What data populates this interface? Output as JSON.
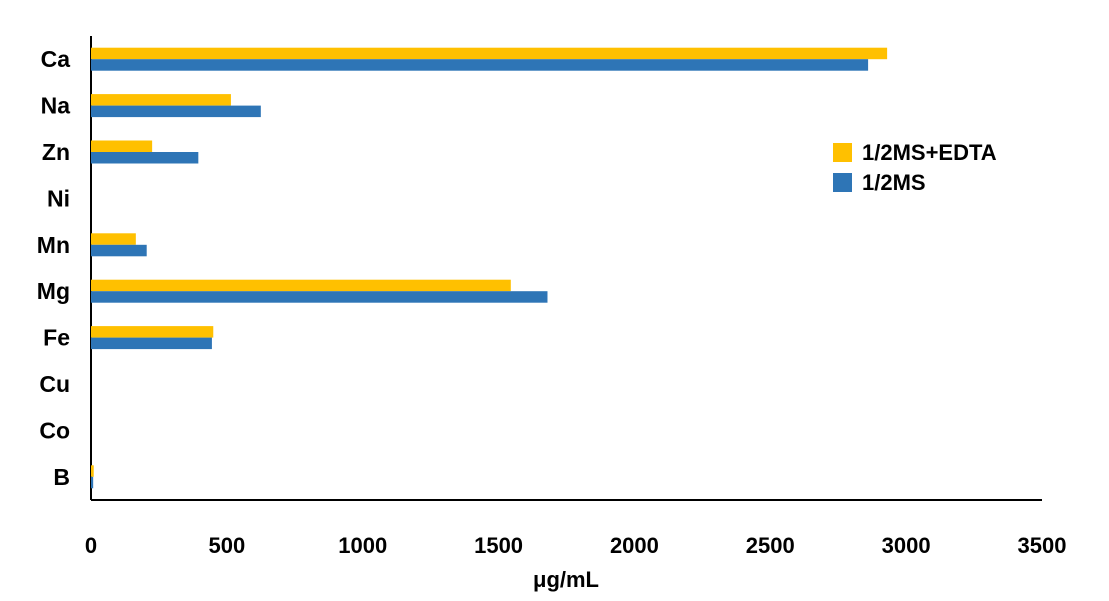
{
  "chart_data": {
    "type": "bar",
    "orientation": "horizontal",
    "categories": [
      "Ca",
      "Na",
      "Zn",
      "Ni",
      "Mn",
      "Mg",
      "Fe",
      "Cu",
      "Co",
      "B"
    ],
    "series": [
      {
        "name": "1/2MS+EDTA",
        "color": "#FFC000",
        "values": [
          2930,
          515,
          225,
          0,
          165,
          1545,
          450,
          0,
          0,
          10
        ]
      },
      {
        "name": "1/2MS",
        "color": "#2E75B6",
        "values": [
          2860,
          625,
          395,
          0,
          205,
          1680,
          445,
          0,
          0,
          8
        ]
      }
    ],
    "xlabel": "μg/mL",
    "ylabel": "",
    "title": "",
    "xlim": [
      0,
      3500
    ],
    "xticks": [
      "0",
      "500",
      "1000",
      "1500",
      "2000",
      "2500",
      "3000",
      "3500"
    ],
    "grid": false,
    "legend_position": "right"
  }
}
